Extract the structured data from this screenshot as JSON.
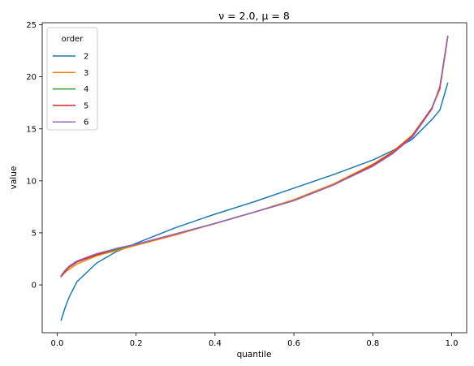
{
  "chart_data": {
    "type": "line",
    "title": "ν = 2.0, μ = 8",
    "xlabel": "quantile",
    "ylabel": "value",
    "xlim": [
      -0.038,
      1.038
    ],
    "ylim": [
      -4.6,
      25.2
    ],
    "xticks": [
      0.0,
      0.2,
      0.4,
      0.6,
      0.8,
      1.0
    ],
    "xtick_labels": [
      "0.0",
      "0.2",
      "0.4",
      "0.6",
      "0.8",
      "1.0"
    ],
    "yticks": [
      0,
      5,
      10,
      15,
      20,
      25
    ],
    "ytick_labels": [
      "0",
      "5",
      "10",
      "15",
      "20",
      "25"
    ],
    "grid": false,
    "legend": {
      "title": "order",
      "position": "top-left"
    },
    "x": [
      0.01,
      0.02,
      0.03,
      0.05,
      0.1,
      0.15,
      0.2,
      0.3,
      0.4,
      0.5,
      0.6,
      0.7,
      0.8,
      0.85,
      0.9,
      0.95,
      0.97,
      0.99
    ],
    "series": [
      {
        "name": "2",
        "color": "#1f77b4",
        "values": [
          -3.4,
          -2.2,
          -1.2,
          0.3,
          2.1,
          3.2,
          4.0,
          5.5,
          6.8,
          8.0,
          9.3,
          10.6,
          12.0,
          12.9,
          14.0,
          15.9,
          16.8,
          19.4
        ]
      },
      {
        "name": "3",
        "color": "#ff7f0e",
        "values": [
          0.8,
          1.2,
          1.5,
          2.0,
          2.8,
          3.3,
          3.8,
          4.8,
          5.9,
          7.0,
          8.2,
          9.7,
          11.6,
          12.8,
          14.4,
          17.0,
          18.8,
          23.8
        ]
      },
      {
        "name": "4",
        "color": "#2ca02c",
        "values": [
          0.8,
          1.3,
          1.7,
          2.2,
          2.9,
          3.4,
          3.9,
          4.9,
          5.9,
          7.0,
          8.1,
          9.6,
          11.5,
          12.7,
          14.3,
          17.0,
          19.0,
          23.9
        ]
      },
      {
        "name": "5",
        "color": "#d62728",
        "values": [
          0.8,
          1.3,
          1.7,
          2.2,
          2.9,
          3.5,
          3.9,
          4.9,
          5.9,
          7.0,
          8.1,
          9.6,
          11.5,
          12.7,
          14.3,
          17.0,
          19.0,
          23.9
        ]
      },
      {
        "name": "6",
        "color": "#9467bd",
        "values": [
          0.9,
          1.4,
          1.8,
          2.3,
          3.0,
          3.5,
          3.9,
          4.9,
          5.9,
          7.0,
          8.1,
          9.6,
          11.4,
          12.6,
          14.2,
          16.9,
          19.1,
          23.9
        ]
      }
    ]
  }
}
